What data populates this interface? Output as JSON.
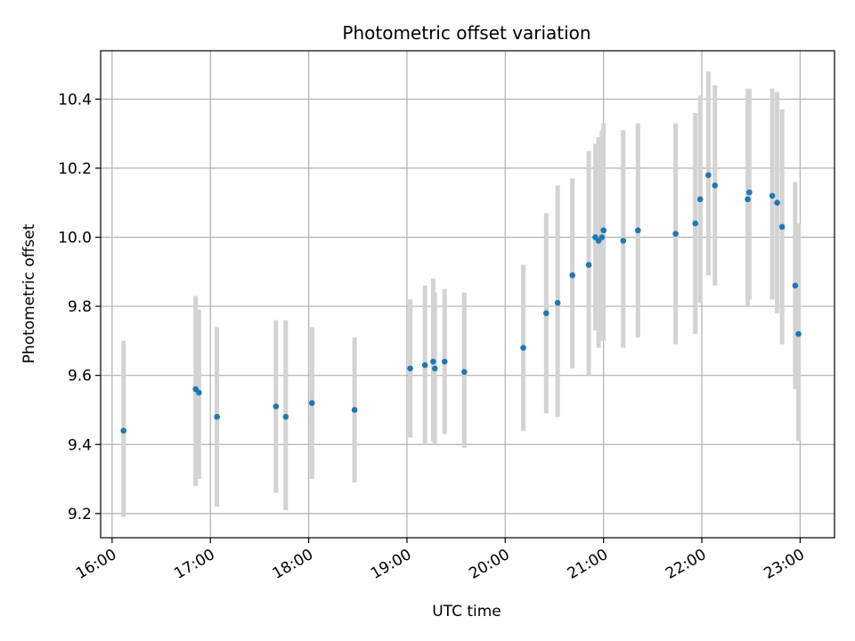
{
  "chart_data": {
    "type": "scatter",
    "title": "Photometric offset variation",
    "xlabel": "UTC time",
    "ylabel": "Photometric offset",
    "x_unit": "UTC time of day",
    "xlim": [
      "15:53",
      "23:21"
    ],
    "ylim": [
      9.13,
      10.54
    ],
    "x_ticks": [
      "16:00",
      "17:00",
      "18:00",
      "19:00",
      "20:00",
      "21:00",
      "22:00",
      "23:00"
    ],
    "y_ticks": [
      "9.2",
      "9.4",
      "9.6",
      "9.8",
      "10.0",
      "10.2",
      "10.4"
    ],
    "grid": true,
    "legend": "none",
    "colors": {
      "points": "#1f77b4",
      "errorbars": "#d3d3d3",
      "grid": "#b0b0b0"
    },
    "series": [
      {
        "points": [
          {
            "x": "16:07",
            "y": 9.44,
            "yerr": [
              9.19,
              9.7
            ]
          },
          {
            "x": "16:51",
            "y": 9.56,
            "yerr": [
              9.28,
              9.83
            ]
          },
          {
            "x": "16:53",
            "y": 9.55,
            "yerr": [
              9.3,
              9.79
            ]
          },
          {
            "x": "17:04",
            "y": 9.48,
            "yerr": [
              9.22,
              9.74
            ]
          },
          {
            "x": "17:40",
            "y": 9.51,
            "yerr": [
              9.26,
              9.76
            ]
          },
          {
            "x": "17:46",
            "y": 9.48,
            "yerr": [
              9.21,
              9.76
            ]
          },
          {
            "x": "18:02",
            "y": 9.52,
            "yerr": [
              9.3,
              9.74
            ]
          },
          {
            "x": "18:28",
            "y": 9.5,
            "yerr": [
              9.29,
              9.71
            ]
          },
          {
            "x": "19:02",
            "y": 9.62,
            "yerr": [
              9.42,
              9.82
            ]
          },
          {
            "x": "19:11",
            "y": 9.63,
            "yerr": [
              9.4,
              9.86
            ]
          },
          {
            "x": "19:16",
            "y": 9.64,
            "yerr": [
              9.41,
              9.88
            ]
          },
          {
            "x": "19:17",
            "y": 9.62,
            "yerr": [
              9.4,
              9.84
            ]
          },
          {
            "x": "19:23",
            "y": 9.64,
            "yerr": [
              9.43,
              9.85
            ]
          },
          {
            "x": "19:35",
            "y": 9.61,
            "yerr": [
              9.39,
              9.84
            ]
          },
          {
            "x": "20:11",
            "y": 9.68,
            "yerr": [
              9.44,
              9.92
            ]
          },
          {
            "x": "20:25",
            "y": 9.78,
            "yerr": [
              9.49,
              10.07
            ]
          },
          {
            "x": "20:32",
            "y": 9.81,
            "yerr": [
              9.48,
              10.15
            ]
          },
          {
            "x": "20:41",
            "y": 9.89,
            "yerr": [
              9.62,
              10.17
            ]
          },
          {
            "x": "20:51",
            "y": 9.92,
            "yerr": [
              9.6,
              10.25
            ]
          },
          {
            "x": "20:55",
            "y": 10.0,
            "yerr": [
              9.73,
              10.27
            ]
          },
          {
            "x": "20:57",
            "y": 9.99,
            "yerr": [
              9.68,
              10.29
            ]
          },
          {
            "x": "20:59",
            "y": 10.0,
            "yerr": [
              9.7,
              10.31
            ]
          },
          {
            "x": "21:00",
            "y": 10.02,
            "yerr": [
              9.7,
              10.33
            ]
          },
          {
            "x": "21:12",
            "y": 9.99,
            "yerr": [
              9.68,
              10.31
            ]
          },
          {
            "x": "21:21",
            "y": 10.02,
            "yerr": [
              9.71,
              10.33
            ]
          },
          {
            "x": "21:44",
            "y": 10.01,
            "yerr": [
              9.69,
              10.33
            ]
          },
          {
            "x": "21:56",
            "y": 10.04,
            "yerr": [
              9.72,
              10.36
            ]
          },
          {
            "x": "21:59",
            "y": 10.11,
            "yerr": [
              9.81,
              10.41
            ]
          },
          {
            "x": "22:04",
            "y": 10.18,
            "yerr": [
              9.89,
              10.48
            ]
          },
          {
            "x": "22:08",
            "y": 10.15,
            "yerr": [
              9.86,
              10.44
            ]
          },
          {
            "x": "22:28",
            "y": 10.11,
            "yerr": [
              9.8,
              10.43
            ]
          },
          {
            "x": "22:29",
            "y": 10.13,
            "yerr": [
              9.82,
              10.43
            ]
          },
          {
            "x": "22:43",
            "y": 10.12,
            "yerr": [
              9.82,
              10.43
            ]
          },
          {
            "x": "22:46",
            "y": 10.1,
            "yerr": [
              9.78,
              10.42
            ]
          },
          {
            "x": "22:49",
            "y": 10.03,
            "yerr": [
              9.69,
              10.37
            ]
          },
          {
            "x": "22:57",
            "y": 9.86,
            "yerr": [
              9.56,
              10.16
            ]
          },
          {
            "x": "22:59",
            "y": 9.72,
            "yerr": [
              9.41,
              10.04
            ]
          }
        ]
      }
    ]
  }
}
